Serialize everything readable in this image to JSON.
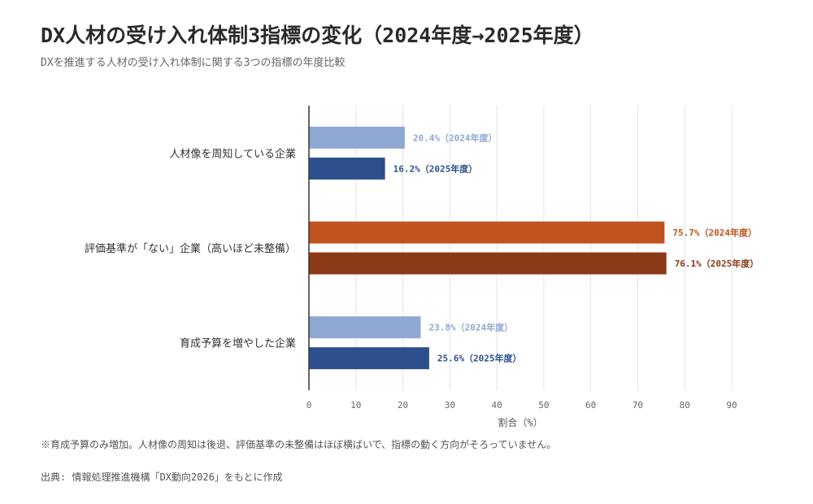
{
  "header": {
    "title": "DX人材の受け入れ体制3指標の変化（2024年度→2025年度）",
    "subtitle": "DXを推進する人材の受け入れ体制に関する3つの指標の年度比較"
  },
  "footer": {
    "note": "※育成予算のみ増加。人材像の周知は後退、評価基準の未整備はほぼ横ばいで、指標の動く方向がそろっていません。",
    "source": "出典: 情報処理推進機構「DX動向2026」をもとに作成"
  },
  "colors": {
    "light_blue": "#8fa8d2",
    "dark_blue": "#2d4f8e",
    "light_orange": "#c0531f",
    "dark_brown": "#8b3a18",
    "grid": "#e3e3e3",
    "axis": "#333333"
  },
  "chart_data": {
    "type": "bar",
    "orientation": "horizontal",
    "xlabel": "割合（%）",
    "xlim": [
      0,
      90
    ],
    "xticks": [
      0,
      10,
      20,
      30,
      40,
      50,
      60,
      70,
      80,
      90
    ],
    "grid": true,
    "categories": [
      "人材像を周知している企業",
      "評価基準が「ない」企業（高いほど未整備）",
      "育成予算を増やした企業"
    ],
    "bars": [
      {
        "category": 0,
        "year": "2024年度",
        "value": 20.4,
        "label": "20.4%（2024年度）",
        "color": "#8fa8d2",
        "text_color": "#8fa8d2"
      },
      {
        "category": 0,
        "year": "2025年度",
        "value": 16.2,
        "label": "16.2%（2025年度）",
        "color": "#2d4f8e",
        "text_color": "#2d4f8e"
      },
      {
        "category": 1,
        "year": "2024年度",
        "value": 75.7,
        "label": "75.7%（2024年度）",
        "color": "#c0531f",
        "text_color": "#c0531f"
      },
      {
        "category": 1,
        "year": "2025年度",
        "value": 76.1,
        "label": "76.1%（2025年度）",
        "color": "#8b3a18",
        "text_color": "#8b3a18"
      },
      {
        "category": 2,
        "year": "2024年度",
        "value": 23.8,
        "label": "23.8%（2024年度）",
        "color": "#8fa8d2",
        "text_color": "#8fa8d2"
      },
      {
        "category": 2,
        "year": "2025年度",
        "value": 25.6,
        "label": "25.6%（2025年度）",
        "color": "#2d4f8e",
        "text_color": "#2d4f8e"
      }
    ]
  }
}
